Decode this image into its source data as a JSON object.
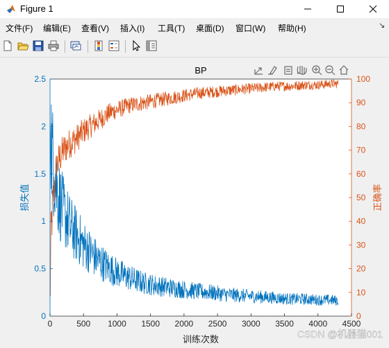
{
  "window": {
    "title": "Figure 1",
    "controls": {
      "minimize": "minimize",
      "maximize": "maximize",
      "close": "close"
    }
  },
  "menubar": {
    "items": [
      "文件(F)",
      "编辑(E)",
      "查看(V)",
      "插入(I)",
      "工具(T)",
      "桌面(D)",
      "窗口(W)",
      "帮助(H)"
    ]
  },
  "toolbar": {
    "icons": [
      "new-figure-icon",
      "open-folder-icon",
      "save-icon",
      "print-icon",
      "link-plot-icon",
      "insert-colorbar-icon",
      "insert-legend-icon",
      "edit-pointer-icon",
      "property-inspector-icon"
    ]
  },
  "axes_toolbar": {
    "icons": [
      "export-icon",
      "brush-icon",
      "data-tips-icon",
      "pan-hand-icon",
      "zoom-in-icon",
      "zoom-out-icon",
      "home-icon"
    ]
  },
  "colors": {
    "loss": "#0072BD",
    "accuracy": "#D95319"
  },
  "watermark": "CSDN @机器猫001",
  "chart_data": {
    "type": "line",
    "title": "BP",
    "xlabel": "训练次数",
    "ylabel_left": "损失值",
    "ylabel_right": "正确率",
    "xlim": [
      0,
      4500
    ],
    "ylim_left": [
      0,
      2.5
    ],
    "ylim_right": [
      0,
      100
    ],
    "x_ticks": [
      "0",
      "500",
      "1000",
      "1500",
      "2000",
      "2500",
      "3000",
      "3500",
      "4000",
      "4500"
    ],
    "y_left_ticks": [
      "0",
      "0.5",
      "1",
      "1.5",
      "2",
      "2.5"
    ],
    "y_right_ticks": [
      "0",
      "10",
      "20",
      "30",
      "40",
      "50",
      "60",
      "70",
      "80",
      "90",
      "100"
    ],
    "grid": false,
    "series": [
      {
        "axis": "left",
        "x": [
          0,
          10,
          25,
          50,
          75,
          100,
          150,
          200,
          300,
          400,
          500,
          600,
          700,
          800,
          900,
          1000,
          1200,
          1400,
          1600,
          1800,
          2000,
          2200,
          2400,
          2600,
          2800,
          3000,
          3200,
          3400,
          3600,
          3800,
          4000,
          4200,
          4300
        ],
        "y": [
          2.4,
          2.1,
          1.75,
          1.6,
          1.5,
          1.35,
          1.2,
          1.1,
          0.95,
          0.85,
          0.75,
          0.68,
          0.6,
          0.55,
          0.5,
          0.46,
          0.4,
          0.35,
          0.32,
          0.3,
          0.28,
          0.26,
          0.25,
          0.23,
          0.22,
          0.21,
          0.2,
          0.19,
          0.18,
          0.18,
          0.17,
          0.17,
          0.16
        ]
      },
      {
        "axis": "right",
        "x": [
          0,
          10,
          25,
          50,
          75,
          100,
          150,
          200,
          300,
          400,
          500,
          600,
          700,
          800,
          900,
          1000,
          1200,
          1400,
          1600,
          1800,
          2000,
          2200,
          2400,
          2600,
          2800,
          3000,
          3200,
          3400,
          3600,
          3800,
          4000,
          4200,
          4300
        ],
        "y": [
          5,
          25,
          40,
          50,
          57,
          63,
          67,
          70,
          73,
          75,
          78,
          80,
          82,
          84,
          86,
          87,
          89,
          90,
          91,
          92,
          93,
          94,
          94.5,
          95,
          95.5,
          96,
          96.5,
          97,
          97,
          97.5,
          97.5,
          98,
          98
        ]
      }
    ]
  }
}
